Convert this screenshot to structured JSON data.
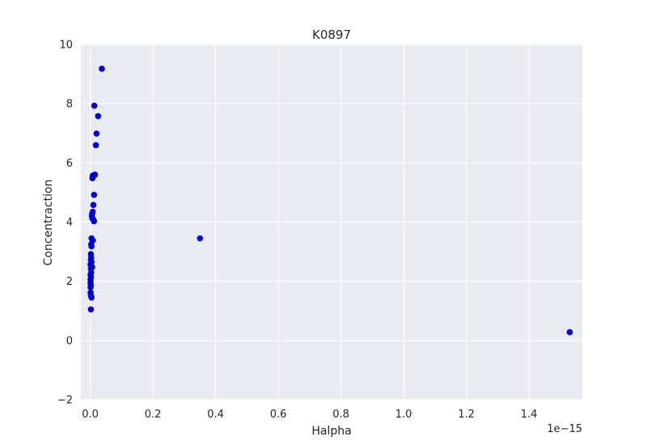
{
  "chart_data": {
    "type": "scatter",
    "title": "K0897",
    "xlabel": "Halpha",
    "ylabel": "Concentraction",
    "x_offset_label": "1e−15",
    "xlim": [
      -0.03,
      1.57
    ],
    "ylim": [
      -2,
      10
    ],
    "xticks": [
      0.0,
      0.2,
      0.4,
      0.6,
      0.8,
      1.0,
      1.2,
      1.4
    ],
    "xtick_labels": [
      "0.0",
      "0.2",
      "0.4",
      "0.6",
      "0.8",
      "1.0",
      "1.2",
      "1.4"
    ],
    "yticks": [
      -2,
      0,
      2,
      4,
      6,
      8,
      10
    ],
    "ytick_labels": [
      "−2",
      "0",
      "2",
      "4",
      "6",
      "8",
      "10"
    ],
    "grid": true,
    "background": "#eaeaf2",
    "grid_color": "#ffffff",
    "marker_color": "#0000cc",
    "series": [
      {
        "points": [
          [
            0.037,
            9.18
          ],
          [
            0.013,
            7.93
          ],
          [
            0.025,
            7.58
          ],
          [
            0.02,
            6.99
          ],
          [
            0.018,
            6.6
          ],
          [
            0.015,
            5.6
          ],
          [
            0.008,
            5.57
          ],
          [
            0.007,
            5.48
          ],
          [
            0.012,
            4.92
          ],
          [
            0.01,
            4.58
          ],
          [
            0.008,
            4.35
          ],
          [
            0.006,
            4.28
          ],
          [
            0.005,
            4.2
          ],
          [
            0.007,
            4.12
          ],
          [
            0.01,
            4.08
          ],
          [
            0.012,
            4.03
          ],
          [
            0.004,
            3.45
          ],
          [
            0.008,
            3.38
          ],
          [
            0.003,
            3.25
          ],
          [
            0.004,
            3.18
          ],
          [
            0.002,
            2.92
          ],
          [
            0.003,
            2.8
          ],
          [
            0.002,
            2.72
          ],
          [
            0.004,
            2.65
          ],
          [
            0.001,
            2.57
          ],
          [
            0.003,
            2.52
          ],
          [
            0.006,
            2.48
          ],
          [
            0.002,
            2.42
          ],
          [
            0.003,
            2.3
          ],
          [
            0.001,
            2.22
          ],
          [
            0.002,
            2.15
          ],
          [
            0.001,
            2.05
          ],
          [
            0.001,
            1.95
          ],
          [
            0.002,
            1.88
          ],
          [
            0.001,
            1.8
          ],
          [
            0.001,
            1.62
          ],
          [
            0.002,
            1.52
          ],
          [
            0.004,
            1.45
          ],
          [
            0.002,
            1.05
          ],
          [
            0.35,
            3.45
          ],
          [
            1.53,
            0.28
          ]
        ]
      }
    ]
  }
}
